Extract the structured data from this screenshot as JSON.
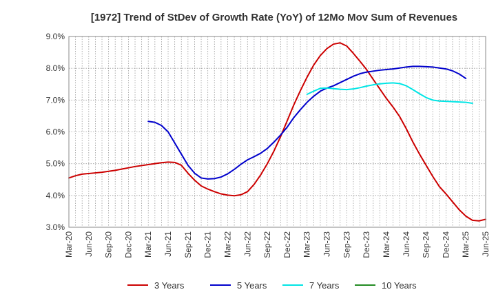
{
  "chart_data": {
    "type": "line",
    "title": "[1972]  Trend of StDev of Growth Rate (YoY) of 12Mo Mov Sum of Revenues",
    "xlabel": "",
    "ylabel": "",
    "ylim": [
      3.0,
      9.0
    ],
    "y_ticks": [
      "3.0%",
      "4.0%",
      "5.0%",
      "6.0%",
      "7.0%",
      "8.0%",
      "9.0%"
    ],
    "y_tick_values": [
      3,
      4,
      5,
      6,
      7,
      8,
      9
    ],
    "x_ticks": [
      "Mar-20",
      "Jun-20",
      "Sep-20",
      "Dec-20",
      "Mar-21",
      "Jun-21",
      "Sep-21",
      "Dec-21",
      "Mar-22",
      "Jun-22",
      "Sep-22",
      "Dec-22",
      "Mar-23",
      "Jun-23",
      "Sep-23",
      "Dec-23",
      "Mar-24",
      "Jun-24",
      "Sep-24",
      "Dec-24",
      "Mar-25",
      "Jun-25"
    ],
    "x_range_months": [
      0,
      63
    ],
    "grid": true,
    "legend_position": "bottom",
    "series": [
      {
        "name": "3 Years",
        "color": "#cc0000",
        "start_month": 0,
        "values": [
          4.55,
          4.62,
          4.67,
          4.69,
          4.71,
          4.73,
          4.76,
          4.79,
          4.83,
          4.87,
          4.91,
          4.94,
          4.97,
          5.0,
          5.03,
          5.05,
          5.04,
          4.95,
          4.7,
          4.48,
          4.3,
          4.2,
          4.12,
          4.05,
          4.01,
          3.99,
          4.02,
          4.12,
          4.35,
          4.65,
          5.0,
          5.4,
          5.85,
          6.35,
          6.85,
          7.3,
          7.72,
          8.1,
          8.4,
          8.62,
          8.76,
          8.8,
          8.7,
          8.47,
          8.22,
          7.96,
          7.65,
          7.35,
          7.05,
          6.78,
          6.48,
          6.1,
          5.68,
          5.3,
          4.95,
          4.6,
          4.28,
          4.05,
          3.8,
          3.55,
          3.35,
          3.22,
          3.2,
          3.25
        ]
      },
      {
        "name": "5 Years",
        "color": "#0000cc",
        "start_month": 12,
        "values": [
          6.33,
          6.3,
          6.2,
          6.0,
          5.65,
          5.3,
          4.95,
          4.7,
          4.55,
          4.52,
          4.53,
          4.58,
          4.68,
          4.82,
          4.98,
          5.12,
          5.22,
          5.33,
          5.48,
          5.68,
          5.9,
          6.15,
          6.45,
          6.7,
          6.93,
          7.12,
          7.28,
          7.38,
          7.45,
          7.55,
          7.65,
          7.75,
          7.83,
          7.88,
          7.91,
          7.94,
          7.96,
          7.98,
          8.01,
          8.04,
          8.06,
          8.06,
          8.05,
          8.04,
          8.01,
          7.98,
          7.92,
          7.82,
          7.68
        ]
      },
      {
        "name": "7 Years",
        "color": "#00e5e5",
        "start_month": 36,
        "values": [
          7.18,
          7.28,
          7.37,
          7.38,
          7.36,
          7.34,
          7.33,
          7.35,
          7.39,
          7.44,
          7.48,
          7.51,
          7.53,
          7.54,
          7.52,
          7.45,
          7.33,
          7.2,
          7.08,
          7.0,
          6.97,
          6.96,
          6.95,
          6.94,
          6.93,
          6.9
        ]
      },
      {
        "name": "10 Years",
        "color": "#228b22",
        "start_month": 0,
        "values": []
      }
    ]
  }
}
